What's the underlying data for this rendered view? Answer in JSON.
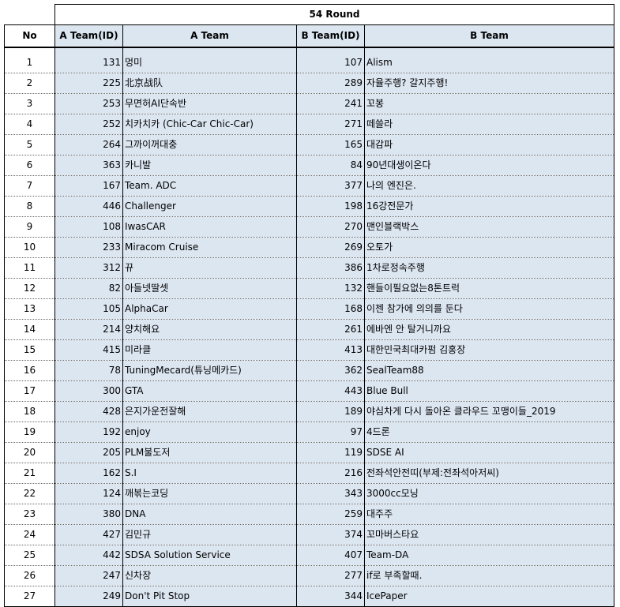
{
  "round_title": "54 Round",
  "headers": {
    "no": "No",
    "a_id": "A Team(ID)",
    "a_team": "A Team",
    "b_id": "B Team(ID)",
    "b_team": "B Team"
  },
  "rows": [
    {
      "no": "1",
      "a_id": "131",
      "a_team": "멍미",
      "b_id": "107",
      "b_team": "Alism"
    },
    {
      "no": "2",
      "a_id": "225",
      "a_team": "北京战队",
      "b_id": "289",
      "b_team": "자율주행? 갈지주행!"
    },
    {
      "no": "3",
      "a_id": "253",
      "a_team": "무면허AI단속반",
      "b_id": "241",
      "b_team": "꼬봉"
    },
    {
      "no": "4",
      "a_id": "252",
      "a_team": "치카치카 (Chic-Car Chic-Car)",
      "b_id": "271",
      "b_team": "떼쓸라"
    },
    {
      "no": "5",
      "a_id": "264",
      "a_team": "그까이꺼대충",
      "b_id": "165",
      "b_team": "대감파"
    },
    {
      "no": "6",
      "a_id": "363",
      "a_team": "카니발",
      "b_id": "84",
      "b_team": "90년대생이온다"
    },
    {
      "no": "7",
      "a_id": "167",
      "a_team": "Team. ADC",
      "b_id": "377",
      "b_team": "나의 엔진은."
    },
    {
      "no": "8",
      "a_id": "446",
      "a_team": "Challenger",
      "b_id": "198",
      "b_team": "16강전문가"
    },
    {
      "no": "9",
      "a_id": "108",
      "a_team": "IwasCAR",
      "b_id": "270",
      "b_team": "맨인블랙박스"
    },
    {
      "no": "10",
      "a_id": "233",
      "a_team": "Miracom Cruise",
      "b_id": "269",
      "b_team": "오토가"
    },
    {
      "no": "11",
      "a_id": "312",
      "a_team": "뀨",
      "b_id": "386",
      "b_team": "1차로정속주행"
    },
    {
      "no": "12",
      "a_id": "82",
      "a_team": "아들넷딸셋",
      "b_id": "132",
      "b_team": "핸들이필요없는8톤트럭"
    },
    {
      "no": "13",
      "a_id": "105",
      "a_team": "AlphaCar",
      "b_id": "168",
      "b_team": "이젠 참가에 의의를 둔다"
    },
    {
      "no": "14",
      "a_id": "214",
      "a_team": "양치해요",
      "b_id": "261",
      "b_team": "에바엔 안 탈거니까요"
    },
    {
      "no": "15",
      "a_id": "415",
      "a_team": "미라클",
      "b_id": "413",
      "b_team": "대한민국최대카펌 김홍장"
    },
    {
      "no": "16",
      "a_id": "78",
      "a_team": "TuningMecard(튜닝메카드)",
      "b_id": "362",
      "b_team": "SealTeam88"
    },
    {
      "no": "17",
      "a_id": "300",
      "a_team": "GTA",
      "b_id": "443",
      "b_team": "Blue Bull"
    },
    {
      "no": "18",
      "a_id": "428",
      "a_team": "은지가운전잘해",
      "b_id": "189",
      "b_team": "야심차게 다시 돌아온 클라우드 꼬맹이들_2019"
    },
    {
      "no": "19",
      "a_id": "192",
      "a_team": "enjoy",
      "b_id": "97",
      "b_team": "4드론"
    },
    {
      "no": "20",
      "a_id": "205",
      "a_team": "PLM불도저",
      "b_id": "119",
      "b_team": "SDSE AI"
    },
    {
      "no": "21",
      "a_id": "162",
      "a_team": "S.I",
      "b_id": "216",
      "b_team": "전좌석안전띠(부제:전좌석아저씨)"
    },
    {
      "no": "22",
      "a_id": "124",
      "a_team": "깨볶는코딩",
      "b_id": "343",
      "b_team": "3000cc모닝"
    },
    {
      "no": "23",
      "a_id": "380",
      "a_team": "DNA",
      "b_id": "259",
      "b_team": "대주주"
    },
    {
      "no": "24",
      "a_id": "427",
      "a_team": "김민규",
      "b_id": "374",
      "b_team": "꼬마버스타요"
    },
    {
      "no": "25",
      "a_id": "442",
      "a_team": "SDSA Solution Service",
      "b_id": "407",
      "b_team": "Team-DA"
    },
    {
      "no": "26",
      "a_id": "247",
      "a_team": "신차장",
      "b_id": "277",
      "b_team": "if로 부족할때."
    },
    {
      "no": "27",
      "a_id": "249",
      "a_team": "Don't Pit Stop",
      "b_id": "344",
      "b_team": "IcePaper"
    }
  ]
}
